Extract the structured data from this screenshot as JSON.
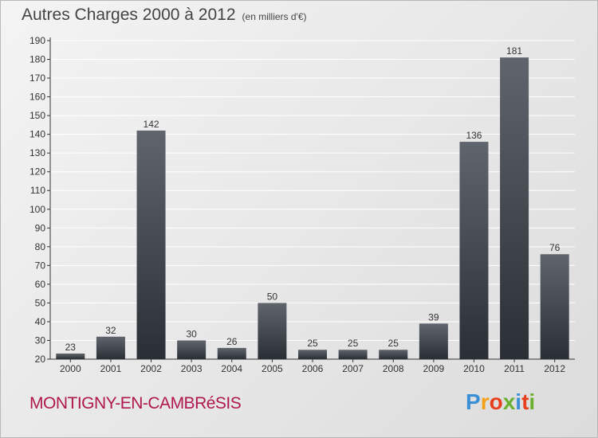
{
  "header": {
    "title": "Autres Charges 2000 à 2012",
    "subtitle": "(en milliers d'€)"
  },
  "footer": {
    "town": "MONTIGNY-EN-CAMBRéSIS",
    "logo_letters": [
      "P",
      "r",
      "o",
      "x",
      "i",
      "t",
      "i"
    ],
    "logo_colors": [
      "#3b8fd4",
      "#f4a21b",
      "#e8401f",
      "#6ab02e",
      "#3b8fd4",
      "#e8401f",
      "#6ab02e"
    ]
  },
  "colors": {
    "bar_top": "#60656d",
    "bar_bottom": "#2a2f35",
    "axis": "#333333",
    "grid": "#ffffff"
  },
  "chart_data": {
    "type": "bar",
    "categories": [
      "2000",
      "2001",
      "2002",
      "2003",
      "2004",
      "2005",
      "2006",
      "2007",
      "2008",
      "2009",
      "2010",
      "2011",
      "2012"
    ],
    "values": [
      23,
      32,
      142,
      30,
      26,
      50,
      25,
      25,
      25,
      39,
      136,
      181,
      76
    ],
    "ylim": [
      20,
      190
    ],
    "yticks": [
      20,
      30,
      40,
      50,
      60,
      70,
      80,
      90,
      100,
      110,
      120,
      130,
      140,
      150,
      160,
      170,
      180,
      190
    ],
    "grid": true,
    "data_labels": true
  }
}
